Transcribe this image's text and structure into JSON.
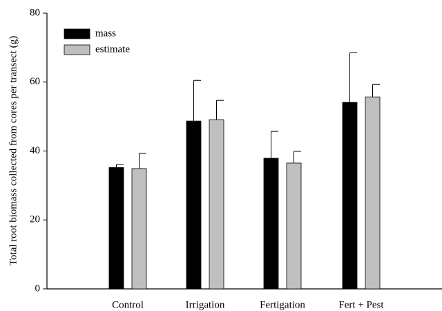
{
  "chart_data": {
    "type": "bar",
    "y_label": "Total root biomass collected from cores per transect (g)",
    "categories": [
      "Control",
      "Irrigation",
      "Fertigation",
      "Fert + Pest"
    ],
    "series": [
      {
        "name": "mass",
        "color": "#000000",
        "values": [
          35.2,
          48.7,
          37.9,
          54.1
        ],
        "errors": [
          0.9,
          11.8,
          7.8,
          14.4
        ]
      },
      {
        "name": "estimate",
        "color": "#bfbfbf",
        "values": [
          34.9,
          49.1,
          36.5,
          55.7
        ],
        "errors": [
          4.4,
          5.6,
          3.4,
          3.6
        ]
      }
    ],
    "ylim": [
      0,
      80
    ],
    "yticks": [
      0,
      20,
      40,
      60,
      80
    ],
    "legend": "upper left"
  }
}
